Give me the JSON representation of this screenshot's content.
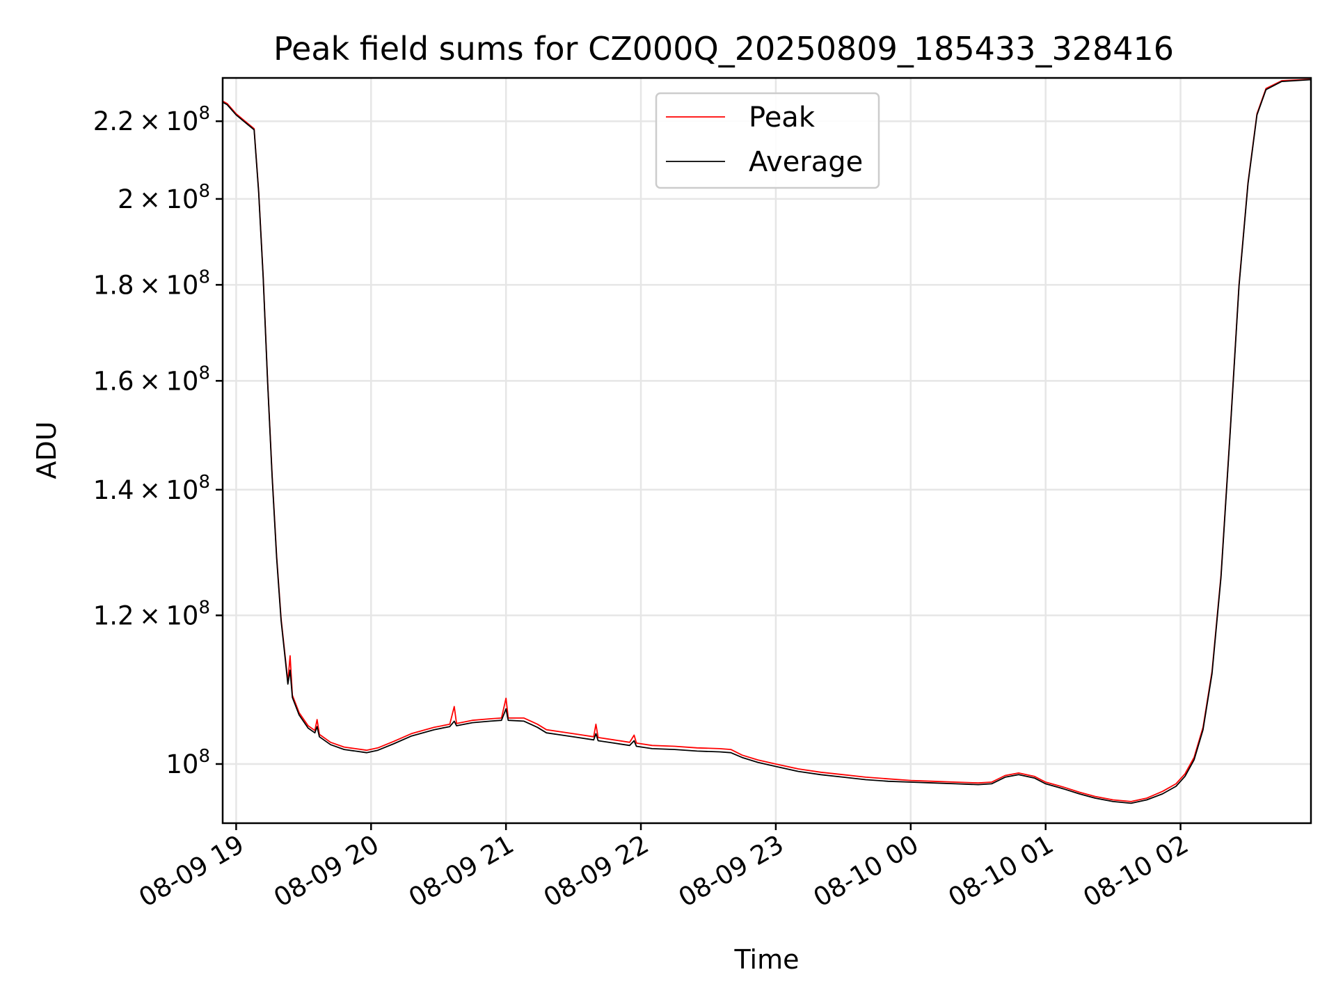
{
  "chart_data": {
    "type": "line",
    "title": "Peak field sums for CZ000Q_20250809_185433_328416",
    "xlabel": "Time",
    "ylabel": "ADU",
    "yscale": "log",
    "xlim": [
      "2025-08-09 18:54",
      "2025-08-10 02:58"
    ],
    "ylim": [
      93000000,
      232000000
    ],
    "grid": true,
    "legend_position": "upper center",
    "x_ticks": [
      {
        "value": "2025-08-09 19:00",
        "label": "08-09 19"
      },
      {
        "value": "2025-08-09 20:00",
        "label": "08-09 20"
      },
      {
        "value": "2025-08-09 21:00",
        "label": "08-09 21"
      },
      {
        "value": "2025-08-09 22:00",
        "label": "08-09 22"
      },
      {
        "value": "2025-08-09 23:00",
        "label": "08-09 23"
      },
      {
        "value": "2025-08-10 00:00",
        "label": "08-10 00"
      },
      {
        "value": "2025-08-10 01:00",
        "label": "08-10 01"
      },
      {
        "value": "2025-08-10 02:00",
        "label": "08-10 02"
      }
    ],
    "y_ticks": [
      {
        "value": 100000000,
        "mantissa": "",
        "exponent": "8"
      },
      {
        "value": 120000000,
        "mantissa": "1.2",
        "exponent": "8"
      },
      {
        "value": 140000000,
        "mantissa": "1.4",
        "exponent": "8"
      },
      {
        "value": 160000000,
        "mantissa": "1.6",
        "exponent": "8"
      },
      {
        "value": 180000000,
        "mantissa": "1.8",
        "exponent": "8"
      },
      {
        "value": 200000000,
        "mantissa": "2",
        "exponent": "8"
      },
      {
        "value": 220000000,
        "mantissa": "2.2",
        "exponent": "8"
      }
    ],
    "series": [
      {
        "name": "Peak",
        "color": "#ff0000",
        "points": [
          [
            "2025-08-09 18:54",
            225500000
          ],
          [
            "2025-08-09 18:56",
            224800000
          ],
          [
            "2025-08-09 19:00",
            222000000
          ],
          [
            "2025-08-09 19:05",
            219500000
          ],
          [
            "2025-08-09 19:08",
            218000000
          ],
          [
            "2025-08-09 19:10",
            202000000
          ],
          [
            "2025-08-09 19:12",
            182000000
          ],
          [
            "2025-08-09 19:14",
            160000000
          ],
          [
            "2025-08-09 19:16",
            142500000
          ],
          [
            "2025-08-09 19:18",
            129000000
          ],
          [
            "2025-08-09 19:20",
            119500000
          ],
          [
            "2025-08-09 19:22",
            113500000
          ],
          [
            "2025-08-09 19:23",
            110600000
          ],
          [
            "2025-08-09 19:24",
            114200000
          ],
          [
            "2025-08-09 19:25",
            108800000
          ],
          [
            "2025-08-09 19:28",
            106500000
          ],
          [
            "2025-08-09 19:32",
            104800000
          ],
          [
            "2025-08-09 19:35",
            104200000
          ],
          [
            "2025-08-09 19:36",
            105600000
          ],
          [
            "2025-08-09 19:37",
            103700000
          ],
          [
            "2025-08-09 19:42",
            102700000
          ],
          [
            "2025-08-09 19:48",
            102100000
          ],
          [
            "2025-08-09 19:53",
            101900000
          ],
          [
            "2025-08-09 19:58",
            101700000
          ],
          [
            "2025-08-09 20:03",
            102000000
          ],
          [
            "2025-08-09 20:10",
            102800000
          ],
          [
            "2025-08-09 20:18",
            103800000
          ],
          [
            "2025-08-09 20:28",
            104600000
          ],
          [
            "2025-08-09 20:35",
            105000000
          ],
          [
            "2025-08-09 20:37",
            107300000
          ],
          [
            "2025-08-09 20:38",
            105100000
          ],
          [
            "2025-08-09 20:45",
            105500000
          ],
          [
            "2025-08-09 20:53",
            105700000
          ],
          [
            "2025-08-09 20:58",
            105800000
          ],
          [
            "2025-08-09 21:00",
            108400000
          ],
          [
            "2025-08-09 21:01",
            105800000
          ],
          [
            "2025-08-09 21:08",
            105800000
          ],
          [
            "2025-08-09 21:14",
            105000000
          ],
          [
            "2025-08-09 21:18",
            104300000
          ],
          [
            "2025-08-09 21:25",
            104000000
          ],
          [
            "2025-08-09 21:32",
            103700000
          ],
          [
            "2025-08-09 21:39",
            103400000
          ],
          [
            "2025-08-09 21:40",
            105000000
          ],
          [
            "2025-08-09 21:41",
            103300000
          ],
          [
            "2025-08-09 21:48",
            103000000
          ],
          [
            "2025-08-09 21:55",
            102700000
          ],
          [
            "2025-08-09 21:57",
            103600000
          ],
          [
            "2025-08-09 21:58",
            102600000
          ],
          [
            "2025-08-09 22:05",
            102300000
          ],
          [
            "2025-08-09 22:15",
            102200000
          ],
          [
            "2025-08-09 22:25",
            102000000
          ],
          [
            "2025-08-09 22:35",
            101900000
          ],
          [
            "2025-08-09 22:40",
            101800000
          ],
          [
            "2025-08-09 22:45",
            101100000
          ],
          [
            "2025-08-09 22:52",
            100500000
          ],
          [
            "2025-08-09 23:00",
            100000000
          ],
          [
            "2025-08-09 23:10",
            99400000
          ],
          [
            "2025-08-09 23:20",
            99000000
          ],
          [
            "2025-08-09 23:30",
            98700000
          ],
          [
            "2025-08-09 23:40",
            98400000
          ],
          [
            "2025-08-09 23:50",
            98200000
          ],
          [
            "2025-08-10 00:00",
            98000000
          ],
          [
            "2025-08-10 00:10",
            97900000
          ],
          [
            "2025-08-10 00:20",
            97800000
          ],
          [
            "2025-08-10 00:30",
            97700000
          ],
          [
            "2025-08-10 00:36",
            97800000
          ],
          [
            "2025-08-10 00:42",
            98600000
          ],
          [
            "2025-08-10 00:48",
            98900000
          ],
          [
            "2025-08-10 00:55",
            98500000
          ],
          [
            "2025-08-10 01:00",
            97800000
          ],
          [
            "2025-08-10 01:08",
            97200000
          ],
          [
            "2025-08-10 01:15",
            96600000
          ],
          [
            "2025-08-10 01:22",
            96100000
          ],
          [
            "2025-08-10 01:30",
            95700000
          ],
          [
            "2025-08-10 01:38",
            95500000
          ],
          [
            "2025-08-10 01:45",
            95900000
          ],
          [
            "2025-08-10 01:52",
            96700000
          ],
          [
            "2025-08-10 01:58",
            97600000
          ],
          [
            "2025-08-10 02:02",
            98800000
          ],
          [
            "2025-08-10 02:06",
            100800000
          ],
          [
            "2025-08-10 02:10",
            104600000
          ],
          [
            "2025-08-10 02:14",
            112000000
          ],
          [
            "2025-08-10 02:18",
            126000000
          ],
          [
            "2025-08-10 02:22",
            150000000
          ],
          [
            "2025-08-10 02:26",
            180000000
          ],
          [
            "2025-08-10 02:30",
            204000000
          ],
          [
            "2025-08-10 02:34",
            222000000
          ],
          [
            "2025-08-10 02:38",
            229000000
          ],
          [
            "2025-08-10 02:45",
            231200000
          ],
          [
            "2025-08-10 02:58",
            231600000
          ]
        ]
      },
      {
        "name": "Average",
        "color": "#000000",
        "points": [
          [
            "2025-08-09 18:54",
            225200000
          ],
          [
            "2025-08-09 18:56",
            224500000
          ],
          [
            "2025-08-09 19:00",
            221700000
          ],
          [
            "2025-08-09 19:05",
            219200000
          ],
          [
            "2025-08-09 19:08",
            217700000
          ],
          [
            "2025-08-09 19:10",
            201700000
          ],
          [
            "2025-08-09 19:12",
            181700000
          ],
          [
            "2025-08-09 19:14",
            159700000
          ],
          [
            "2025-08-09 19:16",
            142200000
          ],
          [
            "2025-08-09 19:18",
            128700000
          ],
          [
            "2025-08-09 19:20",
            119200000
          ],
          [
            "2025-08-09 19:22",
            113200000
          ],
          [
            "2025-08-09 19:23",
            110300000
          ],
          [
            "2025-08-09 19:24",
            112200000
          ],
          [
            "2025-08-09 19:25",
            108500000
          ],
          [
            "2025-08-09 19:28",
            106200000
          ],
          [
            "2025-08-09 19:32",
            104500000
          ],
          [
            "2025-08-09 19:35",
            103900000
          ],
          [
            "2025-08-09 19:36",
            104700000
          ],
          [
            "2025-08-09 19:37",
            103400000
          ],
          [
            "2025-08-09 19:42",
            102400000
          ],
          [
            "2025-08-09 19:48",
            101800000
          ],
          [
            "2025-08-09 19:53",
            101600000
          ],
          [
            "2025-08-09 19:58",
            101400000
          ],
          [
            "2025-08-09 20:03",
            101700000
          ],
          [
            "2025-08-09 20:10",
            102500000
          ],
          [
            "2025-08-09 20:18",
            103500000
          ],
          [
            "2025-08-09 20:28",
            104300000
          ],
          [
            "2025-08-09 20:35",
            104700000
          ],
          [
            "2025-08-09 20:37",
            105400000
          ],
          [
            "2025-08-09 20:38",
            104800000
          ],
          [
            "2025-08-09 20:45",
            105200000
          ],
          [
            "2025-08-09 20:53",
            105400000
          ],
          [
            "2025-08-09 20:58",
            105500000
          ],
          [
            "2025-08-09 21:00",
            107000000
          ],
          [
            "2025-08-09 21:01",
            105500000
          ],
          [
            "2025-08-09 21:08",
            105400000
          ],
          [
            "2025-08-09 21:14",
            104600000
          ],
          [
            "2025-08-09 21:18",
            103900000
          ],
          [
            "2025-08-09 21:25",
            103600000
          ],
          [
            "2025-08-09 21:32",
            103300000
          ],
          [
            "2025-08-09 21:39",
            103000000
          ],
          [
            "2025-08-09 21:40",
            103800000
          ],
          [
            "2025-08-09 21:41",
            102900000
          ],
          [
            "2025-08-09 21:48",
            102600000
          ],
          [
            "2025-08-09 21:55",
            102300000
          ],
          [
            "2025-08-09 21:57",
            102900000
          ],
          [
            "2025-08-09 21:58",
            102200000
          ],
          [
            "2025-08-09 22:05",
            101900000
          ],
          [
            "2025-08-09 22:15",
            101800000
          ],
          [
            "2025-08-09 22:25",
            101600000
          ],
          [
            "2025-08-09 22:35",
            101500000
          ],
          [
            "2025-08-09 22:40",
            101400000
          ],
          [
            "2025-08-09 22:45",
            100800000
          ],
          [
            "2025-08-09 22:52",
            100200000
          ],
          [
            "2025-08-09 23:00",
            99700000
          ],
          [
            "2025-08-09 23:10",
            99100000
          ],
          [
            "2025-08-09 23:20",
            98700000
          ],
          [
            "2025-08-09 23:30",
            98400000
          ],
          [
            "2025-08-09 23:40",
            98100000
          ],
          [
            "2025-08-09 23:50",
            97900000
          ],
          [
            "2025-08-10 00:00",
            97800000
          ],
          [
            "2025-08-10 00:10",
            97700000
          ],
          [
            "2025-08-10 00:20",
            97600000
          ],
          [
            "2025-08-10 00:30",
            97500000
          ],
          [
            "2025-08-10 00:36",
            97600000
          ],
          [
            "2025-08-10 00:42",
            98400000
          ],
          [
            "2025-08-10 00:48",
            98700000
          ],
          [
            "2025-08-10 00:55",
            98300000
          ],
          [
            "2025-08-10 01:00",
            97600000
          ],
          [
            "2025-08-10 01:08",
            97000000
          ],
          [
            "2025-08-10 01:15",
            96400000
          ],
          [
            "2025-08-10 01:22",
            95900000
          ],
          [
            "2025-08-10 01:30",
            95500000
          ],
          [
            "2025-08-10 01:38",
            95300000
          ],
          [
            "2025-08-10 01:45",
            95700000
          ],
          [
            "2025-08-10 01:52",
            96400000
          ],
          [
            "2025-08-10 01:58",
            97300000
          ],
          [
            "2025-08-10 02:02",
            98500000
          ],
          [
            "2025-08-10 02:06",
            100500000
          ],
          [
            "2025-08-10 02:10",
            104300000
          ],
          [
            "2025-08-10 02:14",
            111700000
          ],
          [
            "2025-08-10 02:18",
            125700000
          ],
          [
            "2025-08-10 02:22",
            149700000
          ],
          [
            "2025-08-10 02:26",
            179700000
          ],
          [
            "2025-08-10 02:30",
            203700000
          ],
          [
            "2025-08-10 02:34",
            221700000
          ],
          [
            "2025-08-10 02:38",
            228700000
          ],
          [
            "2025-08-10 02:45",
            231000000
          ],
          [
            "2025-08-10 02:58",
            231500000
          ]
        ]
      }
    ]
  }
}
